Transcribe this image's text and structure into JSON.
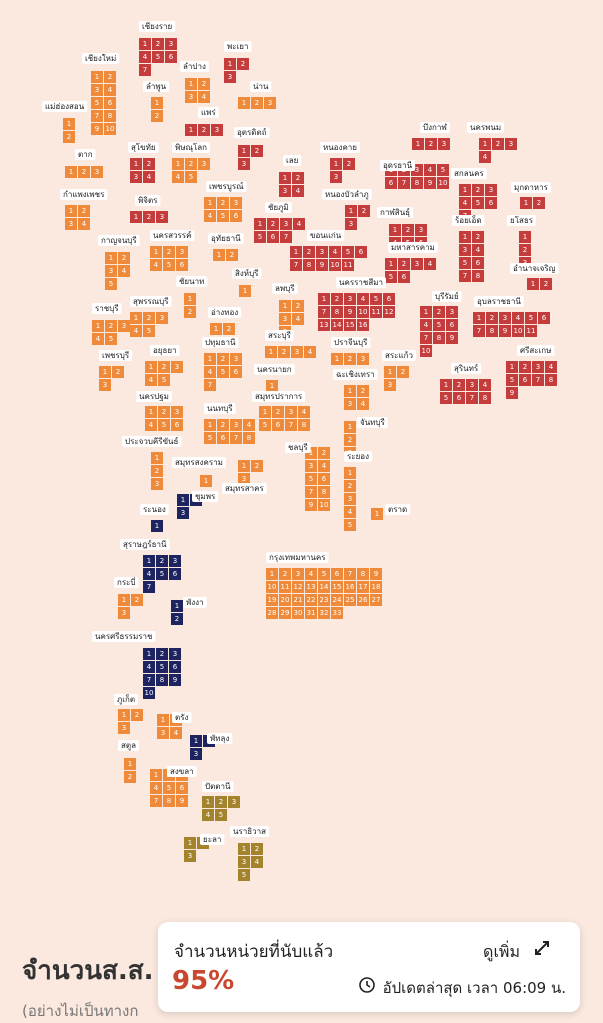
{
  "header": {
    "title": "จำนวนส.ส.",
    "subtitle": "(อย่างไม่เป็นทางก"
  },
  "card": {
    "title": "จำนวนหน่วยที่นับแล้ว",
    "percent": "95%",
    "more": "ดูเพิ่ม",
    "updated": "อัปเดตล่าสุด เวลา 06:09 น."
  },
  "provinces": [
    {
      "name": "เชียงราย",
      "seats": [
        1,
        2,
        3,
        4,
        5,
        6,
        7
      ],
      "color": "#c43c3c"
    },
    {
      "name": "พะเยา",
      "seats": [
        1,
        2,
        3
      ],
      "color": "#c43c3c"
    },
    {
      "name": "เชียงใหม่",
      "seats": [
        1,
        2,
        3,
        4,
        5,
        6,
        7,
        8,
        9,
        10
      ],
      "color": "#ee8a3a"
    },
    {
      "name": "ลำปาง",
      "seats": [
        1,
        2,
        3,
        4
      ],
      "color": "#ee8a3a"
    },
    {
      "name": "ลำพูน",
      "seats": [
        1,
        2
      ],
      "color": "#ee8a3a"
    },
    {
      "name": "น่าน",
      "seats": [
        1,
        2,
        3
      ],
      "color": "#ee8a3a"
    },
    {
      "name": "แม่ฮ่องสอน",
      "seats": [
        1,
        2
      ],
      "color": "#ee8a3a"
    },
    {
      "name": "แพร่",
      "seats": [
        1,
        2,
        3
      ],
      "color": "#c43c3c"
    },
    {
      "name": "อุตรดิตถ์",
      "seats": [
        1,
        2,
        3
      ],
      "color": "#c43c3c"
    },
    {
      "name": "สุโขทัย",
      "seats": [
        1,
        2,
        3,
        4
      ],
      "color": "#c43c3c"
    },
    {
      "name": "พิษณุโลก",
      "seats": [
        1,
        2,
        3,
        4,
        5
      ],
      "color": "#ee8a3a"
    },
    {
      "name": "บึงกาฬ",
      "seats": [
        1,
        2,
        3
      ],
      "color": "#c43c3c"
    },
    {
      "name": "นครพนม",
      "seats": [
        1,
        2,
        3,
        4
      ],
      "color": "#c43c3c"
    },
    {
      "name": "หนองคาย",
      "seats": [
        1,
        2,
        3
      ],
      "color": "#c43c3c"
    },
    {
      "name": "เลย",
      "seats": [
        1,
        2,
        3,
        4
      ],
      "color": "#c43c3c"
    },
    {
      "name": "ตาก",
      "seats": [
        1,
        2,
        3
      ],
      "color": "#ee8a3a"
    },
    {
      "name": "อุดรธานี",
      "seats": [
        1,
        2,
        3,
        4,
        5,
        6,
        7,
        8,
        9,
        10
      ],
      "color": "#c43c3c"
    },
    {
      "name": "สกลนคร",
      "seats": [
        1,
        2,
        3,
        4,
        5,
        6,
        7
      ],
      "color": "#c43c3c"
    },
    {
      "name": "มุกดาหาร",
      "seats": [
        1,
        2
      ],
      "color": "#c43c3c"
    },
    {
      "name": "กำแพงเพชร",
      "seats": [
        1,
        2,
        3,
        4
      ],
      "color": "#ee8a3a"
    },
    {
      "name": "พิจิตร",
      "seats": [
        1,
        2,
        3
      ],
      "color": "#c43c3c"
    },
    {
      "name": "เพชรบูรณ์",
      "seats": [
        1,
        2,
        3,
        4,
        5,
        6
      ],
      "color": "#ee8a3a"
    },
    {
      "name": "หนองบัวลำภู",
      "seats": [
        1,
        2,
        3
      ],
      "color": "#c43c3c"
    },
    {
      "name": "ชัยภูมิ",
      "seats": [
        1,
        2,
        3,
        4,
        5,
        6,
        7
      ],
      "color": "#c43c3c"
    },
    {
      "name": "กาฬสินธุ์",
      "seats": [
        1,
        2,
        3,
        4,
        5,
        6
      ],
      "color": "#c43c3c"
    },
    {
      "name": "ร้อยเอ็ด",
      "seats": [
        1,
        2,
        3,
        4,
        5,
        6,
        7,
        8
      ],
      "color": "#c43c3c"
    },
    {
      "name": "ยโสธร",
      "seats": [
        1,
        2,
        3
      ],
      "color": "#c43c3c"
    },
    {
      "name": "กาญจนบุรี",
      "seats": [
        1,
        2,
        3,
        4,
        5
      ],
      "color": "#ee8a3a"
    },
    {
      "name": "นครสวรรค์",
      "seats": [
        1,
        2,
        3,
        4,
        5,
        6
      ],
      "color": "#ee8a3a"
    },
    {
      "name": "อุทัยธานี",
      "seats": [
        1,
        2
      ],
      "color": "#ee8a3a"
    },
    {
      "name": "ขอนแก่น",
      "seats": [
        1,
        2,
        3,
        4,
        5,
        6,
        7,
        8,
        9,
        10,
        11
      ],
      "color": "#c43c3c"
    },
    {
      "name": "มหาสารคาม",
      "seats": [
        1,
        2,
        3,
        4,
        5,
        6
      ],
      "color": "#c43c3c"
    },
    {
      "name": "อำนาจเจริญ",
      "seats": [
        1,
        2
      ],
      "color": "#c43c3c"
    },
    {
      "name": "สิงห์บุรี",
      "seats": [
        1
      ],
      "color": "#ee8a3a"
    },
    {
      "name": "ชัยนาท",
      "seats": [
        1,
        2
      ],
      "color": "#ee8a3a"
    },
    {
      "name": "ลพบุรี",
      "seats": [
        1,
        2,
        3,
        4,
        5
      ],
      "color": "#ee8a3a"
    },
    {
      "name": "นครราชสีมา",
      "seats": [
        1,
        2,
        3,
        4,
        5,
        6,
        7,
        8,
        9,
        10,
        11,
        12,
        13,
        14,
        15,
        16
      ],
      "color": "#c43c3c"
    },
    {
      "name": "บุรีรัมย์",
      "seats": [
        1,
        2,
        3,
        4,
        5,
        6,
        7,
        8,
        9,
        10
      ],
      "color": "#c43c3c"
    },
    {
      "name": "อุบลราชธานี",
      "seats": [
        1,
        2,
        3,
        4,
        5,
        6,
        7,
        8,
        9,
        10,
        11
      ],
      "color": "#c43c3c"
    },
    {
      "name": "สุพรรณบุรี",
      "seats": [
        1,
        2,
        3,
        4,
        5
      ],
      "color": "#ee8a3a"
    },
    {
      "name": "ราชบุรี",
      "seats": [
        1,
        2,
        3,
        4,
        5
      ],
      "color": "#ee8a3a"
    },
    {
      "name": "อ่างทอง",
      "seats": [
        1,
        2
      ],
      "color": "#ee8a3a"
    },
    {
      "name": "สระบุรี",
      "seats": [
        1,
        2,
        3,
        4
      ],
      "color": "#ee8a3a"
    },
    {
      "name": "ปทุมธานี",
      "seats": [
        1,
        2,
        3,
        4,
        5,
        6,
        7
      ],
      "color": "#ee8a3a"
    },
    {
      "name": "ปราจีนบุรี",
      "seats": [
        1,
        2,
        3
      ],
      "color": "#ee8a3a"
    },
    {
      "name": "อยุธยา",
      "seats": [
        1,
        2,
        3,
        4,
        5
      ],
      "color": "#ee8a3a"
    },
    {
      "name": "ศรีสะเกษ",
      "seats": [
        1,
        2,
        3,
        4,
        5,
        6,
        7,
        8,
        9
      ],
      "color": "#c43c3c"
    },
    {
      "name": "เพชรบุรี",
      "seats": [
        1,
        2,
        3
      ],
      "color": "#ee8a3a"
    },
    {
      "name": "สระแก้ว",
      "seats": [
        1,
        2,
        3
      ],
      "color": "#ee8a3a"
    },
    {
      "name": "นครนายก",
      "seats": [
        1
      ],
      "color": "#ee8a3a"
    },
    {
      "name": "ฉะเชิงเทรา",
      "seats": [
        1,
        2,
        3,
        4
      ],
      "color": "#ee8a3a"
    },
    {
      "name": "สุรินทร์",
      "seats": [
        1,
        2,
        3,
        4,
        5,
        6,
        7,
        8
      ],
      "color": "#c43c3c"
    },
    {
      "name": "สมุทรปราการ",
      "seats": [
        1,
        2,
        3,
        4,
        5,
        6,
        7,
        8
      ],
      "color": "#ee8a3a"
    },
    {
      "name": "นครปฐม",
      "seats": [
        1,
        2,
        3,
        4,
        5,
        6
      ],
      "color": "#ee8a3a"
    },
    {
      "name": "นนทบุรี",
      "seats": [
        1,
        2,
        3,
        4,
        5,
        6,
        7,
        8
      ],
      "color": "#ee8a3a"
    },
    {
      "name": "จันทบุรี",
      "seats": [
        1,
        2,
        3
      ],
      "color": "#ee8a3a"
    },
    {
      "name": "ประจวบคีรีขันธ์",
      "seats": [
        1,
        2,
        3
      ],
      "color": "#ee8a3a"
    },
    {
      "name": "ชลบุรี",
      "seats": [
        1,
        2,
        3,
        4,
        5,
        6,
        7,
        8,
        9,
        10
      ],
      "color": "#ee8a3a"
    },
    {
      "name": "สมุทรสงคราม",
      "seats": [
        1
      ],
      "color": "#ee8a3a"
    },
    {
      "name": "ระยอง",
      "seats": [
        1,
        2,
        3,
        4,
        5
      ],
      "color": "#ee8a3a"
    },
    {
      "name": "สมุทรสาคร",
      "seats": [
        1,
        2,
        3
      ],
      "color": "#ee8a3a"
    },
    {
      "name": "ชุมพร",
      "seats": [
        1,
        2,
        3
      ],
      "color": "#1d2460"
    },
    {
      "name": "ระนอง",
      "seats": [
        1
      ],
      "color": "#1d2460"
    },
    {
      "name": "ตราด",
      "seats": [
        1
      ],
      "color": "#ee8a3a"
    },
    {
      "name": "สุราษฎร์ธานี",
      "seats": [
        1,
        2,
        3,
        4,
        5,
        6,
        7
      ],
      "color": "#1d2460"
    },
    {
      "name": "กรุงเทพมหานคร",
      "seats": [
        1,
        2,
        3,
        4,
        5,
        6,
        7,
        8,
        9,
        10,
        11,
        12,
        13,
        14,
        15,
        16,
        17,
        18,
        19,
        20,
        21,
        22,
        23,
        24,
        25,
        26,
        27,
        28,
        29,
        30,
        31,
        32,
        33
      ],
      "color": "#ee8a3a"
    },
    {
      "name": "กระบี่",
      "seats": [
        1,
        2,
        3
      ],
      "color": "#ee8a3a"
    },
    {
      "name": "พังงา",
      "seats": [
        1,
        2
      ],
      "color": "#1d2460"
    },
    {
      "name": "นครศรีธรรมราช",
      "seats": [
        1,
        2,
        3,
        4,
        5,
        6,
        7,
        8,
        9,
        10
      ],
      "color": "#1d2460"
    },
    {
      "name": "ภูเก็ต",
      "seats": [
        1,
        2,
        3
      ],
      "color": "#ee8a3a"
    },
    {
      "name": "ตรัง",
      "seats": [
        1,
        2,
        3,
        4
      ],
      "color": "#ee8a3a"
    },
    {
      "name": "สตูล",
      "seats": [
        1,
        2
      ],
      "color": "#ee8a3a"
    },
    {
      "name": "พัทลุง",
      "seats": [
        1,
        2,
        3
      ],
      "color": "#1d2460"
    },
    {
      "name": "สงขลา",
      "seats": [
        1,
        2,
        3,
        4,
        5,
        6,
        7,
        8,
        9
      ],
      "color": "#ee8a3a"
    },
    {
      "name": "ปัตตานี",
      "seats": [
        1,
        2,
        3,
        4,
        5
      ],
      "color": "#a3832c"
    },
    {
      "name": "นราธิวาส",
      "seats": [
        1,
        2,
        3,
        4,
        5
      ],
      "color": "#a3832c"
    },
    {
      "name": "ยะลา",
      "seats": [
        1,
        2,
        3
      ],
      "color": "#a3832c"
    }
  ]
}
